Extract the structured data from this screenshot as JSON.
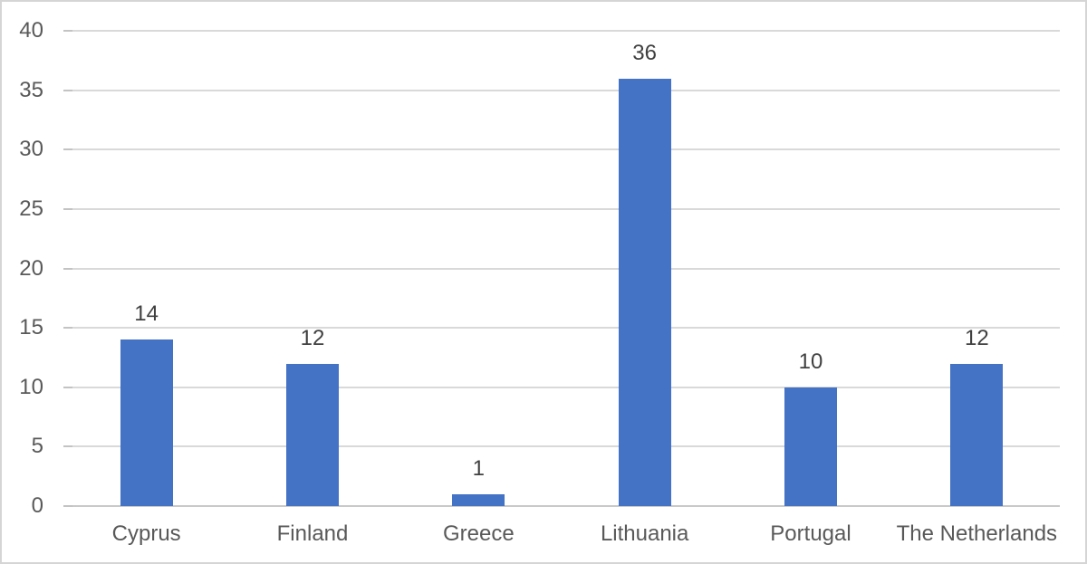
{
  "chart_data": {
    "type": "bar",
    "categories": [
      "Cyprus",
      "Finland",
      "Greece",
      "Lithuania",
      "Portugal",
      "The Netherlands"
    ],
    "values": [
      14,
      12,
      1,
      36,
      10,
      12
    ],
    "data_labels": [
      "14",
      "12",
      "1",
      "36",
      "10",
      "12"
    ],
    "y_tick_labels": [
      "0",
      "5",
      "10",
      "15",
      "20",
      "25",
      "30",
      "35",
      "40"
    ],
    "title": "",
    "xlabel": "",
    "ylabel": "",
    "ylim": [
      0,
      40
    ],
    "ytick_interval": 5,
    "grid": "horizontal",
    "legend": "none",
    "colors": {
      "bar": "#4472C4",
      "gridline": "#D9D9D9",
      "gridline_tick": "#C3C3C3",
      "axis_line": "#C9C9C9",
      "axis_label": "#595959",
      "data_label": "#404040",
      "background": "#FFFFFF",
      "frame_border": "#D5D5D5"
    }
  }
}
